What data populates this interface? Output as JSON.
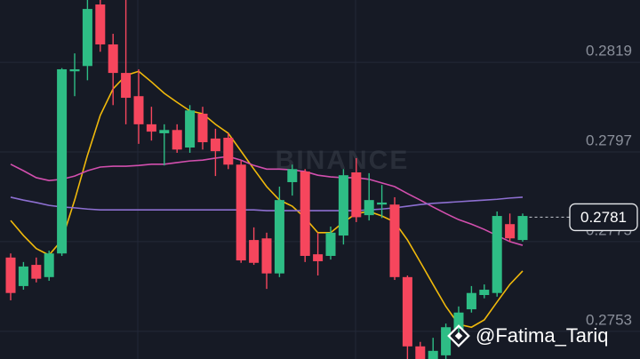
{
  "chart_data": {
    "type": "candlestick",
    "open": [
      0.27711,
      0.27641,
      0.27693,
      0.27663,
      0.27721,
      0.28168,
      0.28181,
      0.28332,
      0.28234,
      0.28164,
      0.28107,
      0.28038,
      0.28016,
      0.28024,
      0.27981,
      0.28064,
      0.28003,
      0.28005,
      0.27939,
      0.27754,
      0.27758,
      0.27672,
      0.27896,
      0.27922,
      0.27719,
      0.27715,
      0.27765,
      0.2792,
      0.27815,
      0.27841,
      0.27841,
      0.27663,
      0.27493,
      0.27462,
      0.27471,
      0.27536,
      0.27584,
      0.27619,
      0.27624,
      0.27793,
      0.27754
    ],
    "high": [
      0.27721,
      0.277,
      0.27711,
      0.27728,
      0.28176,
      0.28212,
      0.28343,
      0.28343,
      0.2826,
      0.28343,
      0.28173,
      0.28081,
      0.28038,
      0.28038,
      0.28085,
      0.28081,
      0.28027,
      0.28016,
      0.2795,
      0.27785,
      0.27772,
      0.27885,
      0.27939,
      0.27928,
      0.27772,
      0.27787,
      0.27928,
      0.27955,
      0.27918,
      0.27889,
      0.27859,
      0.27667,
      0.27504,
      0.27514,
      0.27549,
      0.27591,
      0.27641,
      0.27645,
      0.27824,
      0.27819,
      0.27819
    ],
    "low": [
      0.27606,
      0.27632,
      0.2765,
      0.27654,
      0.27715,
      0.28107,
      0.28146,
      0.28216,
      0.28085,
      0.28038,
      0.2799,
      0.27998,
      0.27937,
      0.27968,
      0.27968,
      0.27976,
      0.27911,
      0.27928,
      0.27698,
      0.27693,
      0.27634,
      0.27663,
      0.27863,
      0.277,
      0.27667,
      0.27706,
      0.27743,
      0.27798,
      0.27802,
      0.27808,
      0.27656,
      0.27462,
      0.27462,
      0.27462,
      0.27462,
      0.27525,
      0.27576,
      0.27611,
      0.27615,
      0.2775,
      0.2775
    ],
    "close": [
      0.27624,
      0.27689,
      0.27659,
      0.27721,
      0.28173,
      0.28173,
      0.28321,
      0.28234,
      0.28164,
      0.28103,
      0.28038,
      0.2802,
      0.28024,
      0.27976,
      0.28072,
      0.27994,
      0.27972,
      0.27939,
      0.27704,
      0.27698,
      0.27672,
      0.27852,
      0.27928,
      0.27715,
      0.27702,
      0.27772,
      0.27913,
      0.2781,
      0.27852,
      0.27846,
      0.27663,
      0.27493,
      0.27462,
      0.27482,
      0.2754,
      0.27576,
      0.27624,
      0.27632,
      0.27813,
      0.27758,
      0.27813
    ],
    "up_color": "#2ebd85",
    "down_color": "#f6465d",
    "lines": [
      {
        "color": "#f0b90b",
        "values": [
          0.27802,
          0.27765,
          0.27733,
          0.27717,
          0.27754,
          0.27852,
          0.27962,
          0.2806,
          0.28125,
          0.28158,
          0.28168,
          0.28142,
          0.28114,
          0.28092,
          0.28071,
          0.28064,
          0.28038,
          0.28016,
          0.27972,
          0.27928,
          0.27885,
          0.27852,
          0.27837,
          0.27808,
          0.27772,
          0.27772,
          0.27798,
          0.27819,
          0.27824,
          0.27813,
          0.27798,
          0.27754,
          0.277,
          0.27645,
          0.27591,
          0.27547,
          0.2754,
          0.27558,
          0.27602,
          0.27645,
          0.27678
        ]
      },
      {
        "color": "#d24fae",
        "values": [
          0.2794,
          0.27924,
          0.27907,
          0.279,
          0.27903,
          0.27911,
          0.27924,
          0.27933,
          0.27935,
          0.27935,
          0.27937,
          0.2794,
          0.2794,
          0.27944,
          0.27948,
          0.2795,
          0.27955,
          0.27959,
          0.2795,
          0.27937,
          0.27928,
          0.27928,
          0.27926,
          0.27922,
          0.27913,
          0.27909,
          0.27907,
          0.27907,
          0.27903,
          0.27894,
          0.27885,
          0.27868,
          0.27852,
          0.27835,
          0.27819,
          0.27804,
          0.27793,
          0.2778,
          0.27765,
          0.2775,
          0.27741
        ]
      },
      {
        "color": "#8d6fd1",
        "values": [
          0.27859,
          0.27852,
          0.27846,
          0.27839,
          0.27835,
          0.27833,
          0.2783,
          0.27828,
          0.27828,
          0.27828,
          0.27828,
          0.27828,
          0.27828,
          0.27828,
          0.27828,
          0.27828,
          0.27828,
          0.27828,
          0.27828,
          0.27828,
          0.27826,
          0.27826,
          0.27826,
          0.27826,
          0.27826,
          0.27826,
          0.27826,
          0.27826,
          0.27828,
          0.2783,
          0.27833,
          0.27837,
          0.27841,
          0.27844,
          0.27846,
          0.27848,
          0.2785,
          0.27852,
          0.27854,
          0.27857,
          0.27859
        ]
      }
    ],
    "ylim": [
      0.27462,
      0.28343
    ],
    "yticks": [
      0.2819,
      0.2797,
      0.2775,
      0.2753
    ],
    "grid": true,
    "current_price": 0.2781,
    "watermark": "BINANCE",
    "author": "@Fatima_Tariq"
  }
}
